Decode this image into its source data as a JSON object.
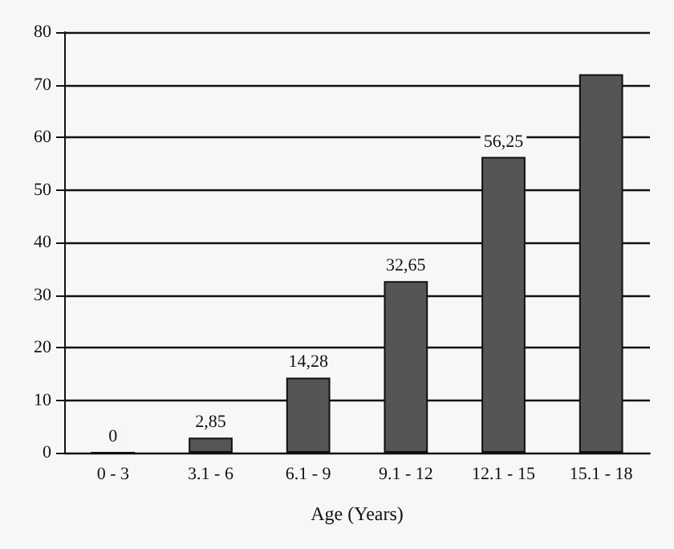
{
  "chart_data": {
    "type": "bar",
    "xlabel": "Age (Years)",
    "categories": [
      "0 - 3",
      "3.1 - 6",
      "6.1 - 9",
      "9.1 - 12",
      "12.1 - 15",
      "15.1 - 18"
    ],
    "values": [
      0,
      2.85,
      14.28,
      32.65,
      56.25,
      72
    ],
    "value_labels": [
      "0",
      "2,85",
      "14,28",
      "32,65",
      "56,25",
      null
    ],
    "color": "#555555",
    "ylim": [
      0,
      80
    ],
    "yticks": [
      0,
      10,
      20,
      30,
      40,
      50,
      60,
      70,
      80
    ],
    "grid": "y"
  }
}
